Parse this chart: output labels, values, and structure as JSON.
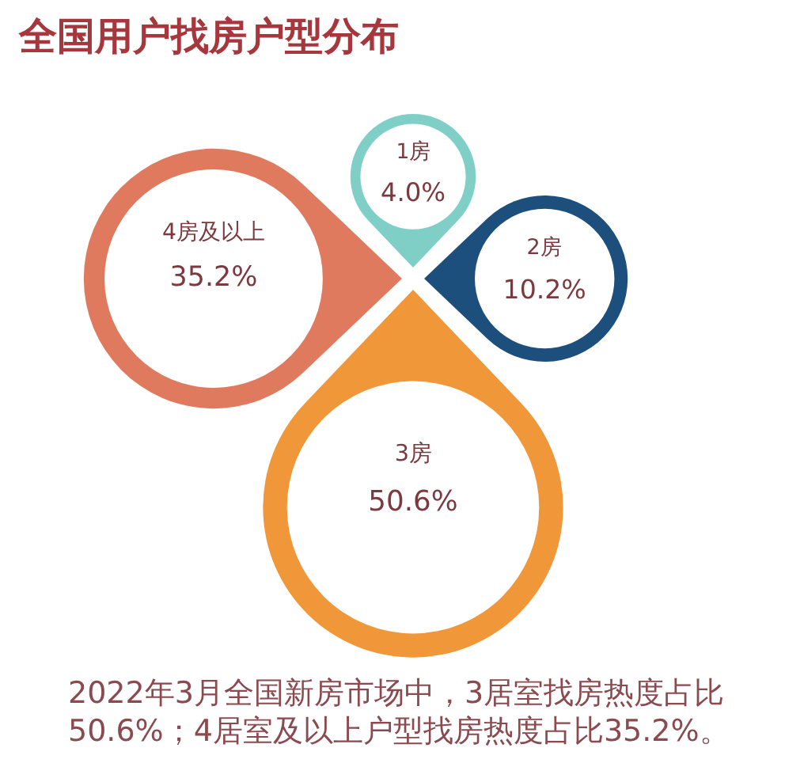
{
  "chart_data": {
    "type": "other",
    "title": "全国用户找房户型分布",
    "categories": [
      "1房",
      "2房",
      "3房",
      "4房及以上"
    ],
    "values": [
      4.0,
      10.2,
      50.6,
      35.2
    ],
    "value_labels": [
      "4.0%",
      "10.2%",
      "50.6%",
      "35.2%"
    ],
    "colors": [
      "#7fcfc6",
      "#1d4f7c",
      "#f0973a",
      "#e07a5e"
    ],
    "annotations": [
      "2022年3月全国新房市场中，3居室找房热度占比50.6%；4居室及以上户型找房热度占比35.2%。"
    ]
  }
}
